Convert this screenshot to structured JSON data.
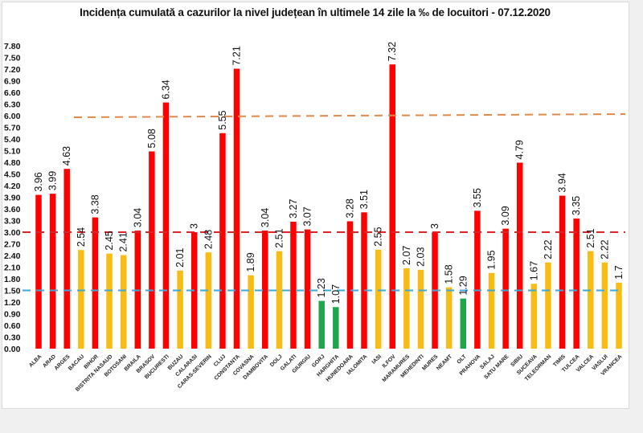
{
  "chart_data": {
    "type": "bar",
    "title": "Incidența cumulată a cazurilor la nivel județean în ultimele 14 zile la ‰ de locuitori - 07.12.2020",
    "xlabel": "",
    "ylabel": "",
    "ylim": [
      0,
      7.8
    ],
    "yticks": [
      "0.00",
      "0.30",
      "0.60",
      "0.90",
      "1.20",
      "1.50",
      "1.80",
      "2.10",
      "2.40",
      "2.70",
      "3.00",
      "3.30",
      "3.60",
      "3.90",
      "4.20",
      "4.50",
      "4.80",
      "5.10",
      "5.40",
      "5.70",
      "6.00",
      "6.30",
      "6.60",
      "6.90",
      "7.20",
      "7.50",
      "7.80"
    ],
    "grid": false,
    "legend": "none",
    "categories": [
      "ALBA",
      "ARAD",
      "ARGES",
      "BACAU",
      "BIHOR",
      "BISTRITA NASAUD",
      "BOTOSANI",
      "BRAILA",
      "BRASOV",
      "BUCURESTI",
      "BUZAU",
      "CALARASI",
      "CARAS-SEVERIN",
      "CLUJ",
      "CONSTANTA",
      "COVASNA",
      "DAMBOVITA",
      "DOLJ",
      "GALATI",
      "GIURGIU",
      "GORJ",
      "HARGHITA",
      "HUNEDOARA",
      "IALOMITA",
      "IASI",
      "ILFOV",
      "MARAMURES",
      "MEHEDINTI",
      "MURES",
      "NEAMT",
      "OLT",
      "PRAHOVA",
      "SALAJ",
      "SATU MARE",
      "SIBIU",
      "SUCEAVA",
      "TELEORMAN",
      "TIMIS",
      "TULCEA",
      "VALCEA",
      "VASLUI",
      "VRANCEA"
    ],
    "values": [
      3.96,
      3.99,
      4.63,
      2.54,
      3.38,
      2.45,
      2.41,
      3.04,
      5.08,
      6.34,
      2.01,
      3,
      2.48,
      5.55,
      7.21,
      1.89,
      3.04,
      2.51,
      3.27,
      3.07,
      1.23,
      1.07,
      3.28,
      3.51,
      2.55,
      7.32,
      2.07,
      2.03,
      3,
      1.58,
      1.29,
      3.55,
      1.95,
      3.09,
      4.79,
      1.67,
      2.22,
      3.94,
      3.35,
      2.51,
      2.22,
      1.7
    ],
    "value_labels": [
      "3.96",
      "3.99",
      "4.63",
      "2.54",
      "3.38",
      "2.45",
      "2.41",
      "3.04",
      "5.08",
      "6.34",
      "2.01",
      "3",
      "2.48",
      "5.55",
      "7.21",
      "1.89",
      "3.04",
      "2.51",
      "3.27",
      "3.07",
      "1.23",
      "1.07",
      "3.28",
      "3.51",
      "2.55",
      "7.32",
      "2.07",
      "2.03",
      "3",
      "1.58",
      "1.29",
      "3.55",
      "1.95",
      "3.09",
      "4.79",
      "1.67",
      "2.22",
      "3.94",
      "3.35",
      "2.51",
      "2.22",
      "1.7"
    ],
    "thresholds": [
      {
        "value": 6.0,
        "color": "#e0894a",
        "style": "dashed"
      },
      {
        "value": 3.0,
        "color": "#d9262b",
        "style": "dashed"
      },
      {
        "value": 1.5,
        "color": "#3ba8d8",
        "style": "dashed"
      }
    ],
    "color_rules": [
      {
        "range": "< 1.5",
        "color": "#1fa64a"
      },
      {
        "range": "1.5 - 3",
        "color": "#f7bd16"
      },
      {
        "range": ">= 3",
        "color": "#ff0000"
      }
    ]
  }
}
